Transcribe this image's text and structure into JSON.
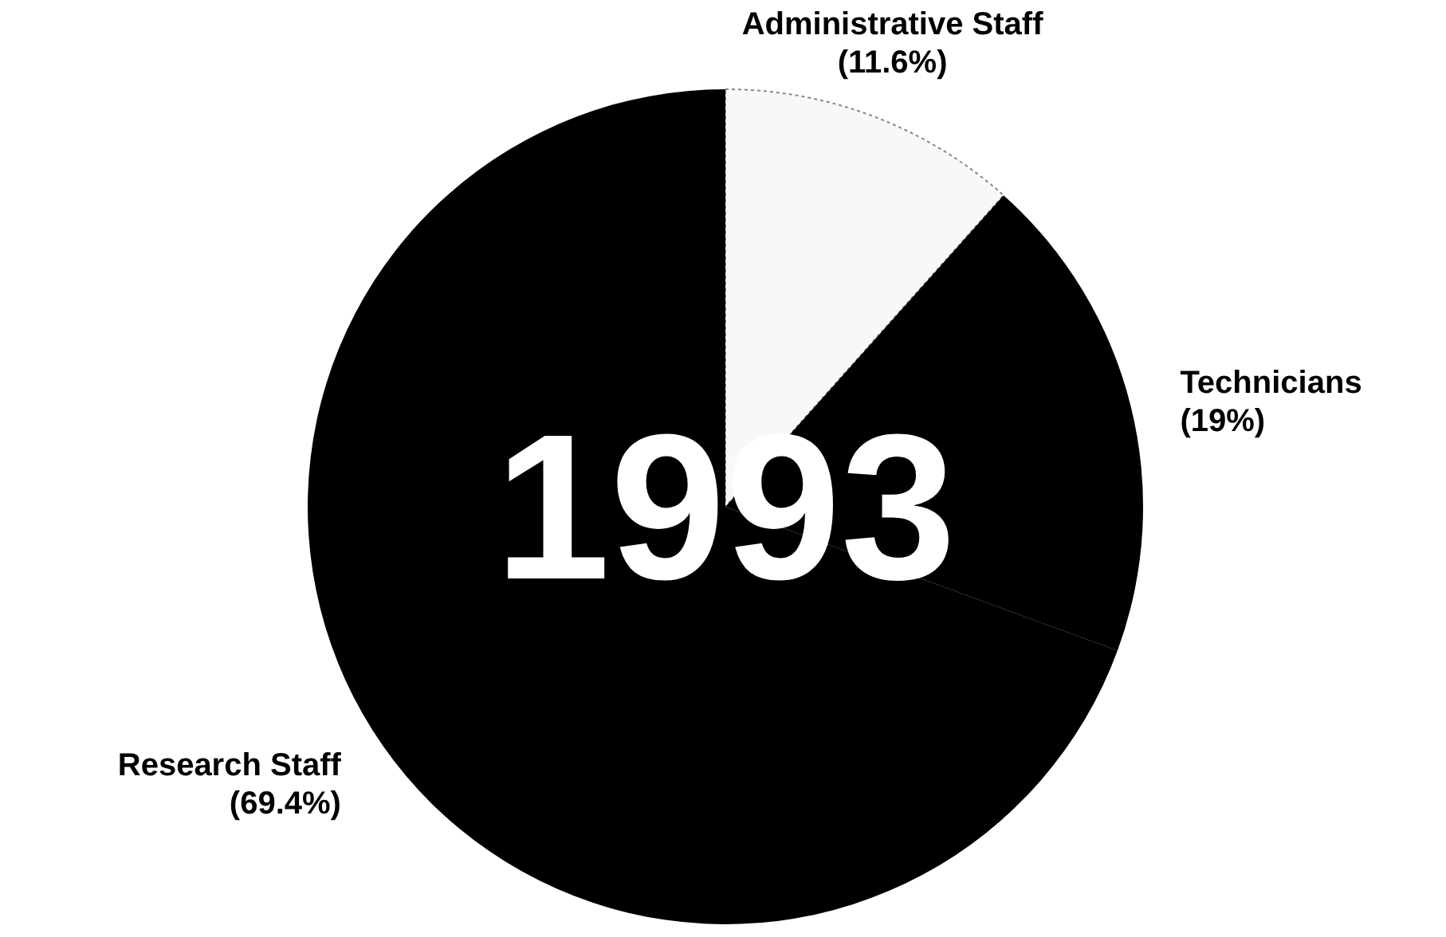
{
  "chart_data": {
    "type": "pie",
    "title": "1993",
    "categories": [
      "Administrative Staff",
      "Technicians",
      "Research Staff"
    ],
    "values": [
      11.6,
      19,
      69.4
    ],
    "value_labels": [
      "(11.6%)",
      "(19%)",
      "(69.4%)"
    ],
    "colors": [
      "#f8f8f8",
      "#000000",
      "#000000"
    ]
  }
}
